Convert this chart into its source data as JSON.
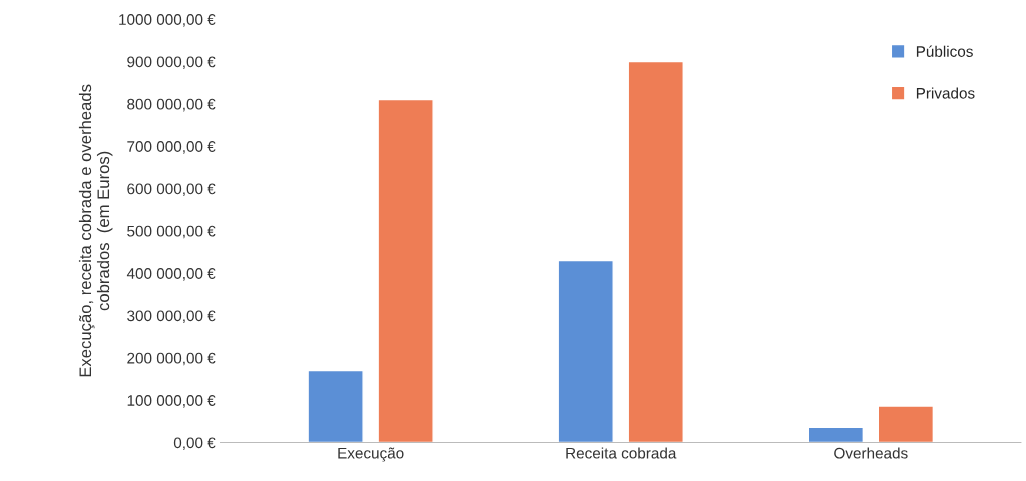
{
  "chart_data": {
    "type": "bar",
    "ylabel": "Execução, receita cobrada e overheads\ncobrados  (em Euros)",
    "categories": [
      "Execução",
      "Receita cobrada",
      "Overheads"
    ],
    "series": [
      {
        "name": "Públicos",
        "color": "#5b8fd6",
        "values": [
          170000,
          430000,
          36000
        ]
      },
      {
        "name": "Privados",
        "color": "#ee7d55",
        "values": [
          810000,
          900000,
          86000
        ]
      }
    ],
    "ylim": [
      0,
      1000000
    ],
    "yticks": [
      {
        "value": 0,
        "label": "0,00 €"
      },
      {
        "value": 100000,
        "label": "100 000,00 €"
      },
      {
        "value": 200000,
        "label": "200 000,00 €"
      },
      {
        "value": 300000,
        "label": "300 000,00 €"
      },
      {
        "value": 400000,
        "label": "400 000,00 €"
      },
      {
        "value": 500000,
        "label": "500 000,00 €"
      },
      {
        "value": 600000,
        "label": "600 000,00 €"
      },
      {
        "value": 700000,
        "label": "700 000,00 €"
      },
      {
        "value": 800000,
        "label": "800 000,00 €"
      },
      {
        "value": 900000,
        "label": "900 000,00 €"
      },
      {
        "value": 1000000,
        "label": "1000 000,00 €"
      }
    ],
    "grid": false,
    "legend": "top right"
  }
}
